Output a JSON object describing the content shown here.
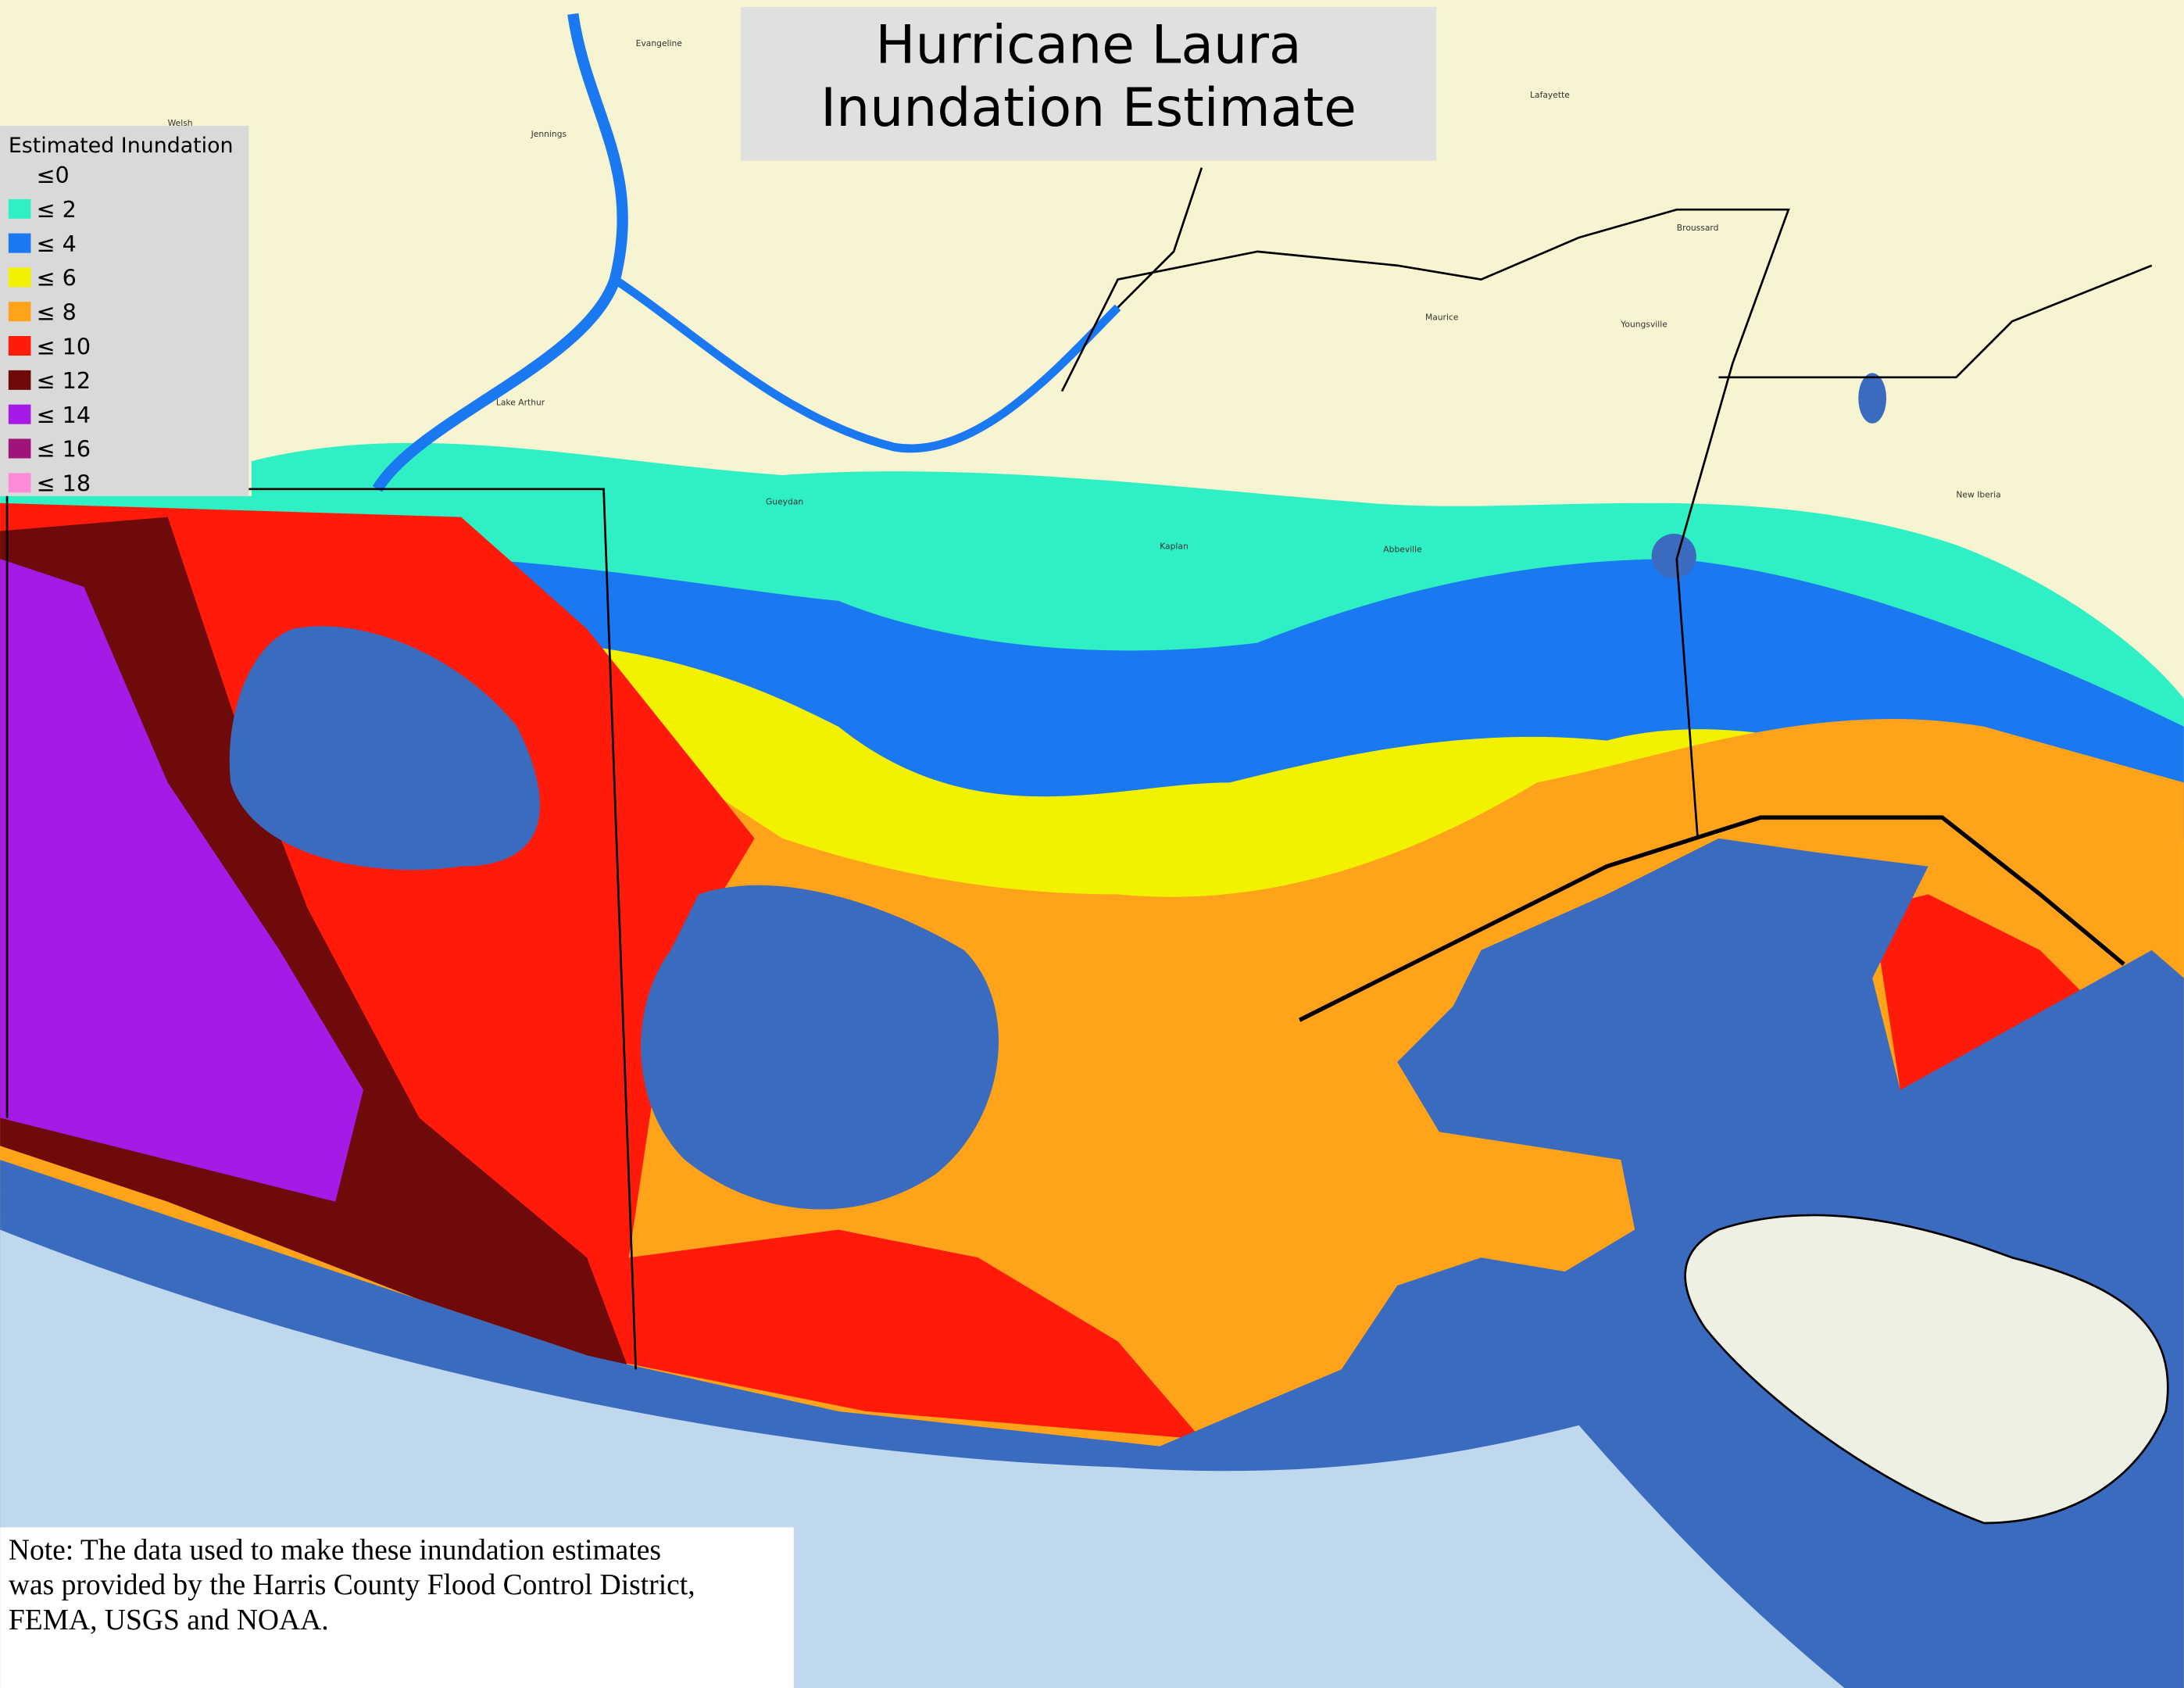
{
  "title": {
    "line1": "Hurricane Laura",
    "line2": "Inundation Estimate"
  },
  "legend": {
    "title": "Estimated Inundation",
    "items": [
      {
        "label": "≤0",
        "color": "#d9d9d9"
      },
      {
        "label": "≤ 2",
        "color": "#2ff0c4"
      },
      {
        "label": "≤ 4",
        "color": "#1a78f0"
      },
      {
        "label": "≤ 6",
        "color": "#f2f200"
      },
      {
        "label": "≤ 8",
        "color": "#ffa31a"
      },
      {
        "label": "≤ 10",
        "color": "#ff1a0a"
      },
      {
        "label": "≤ 12",
        "color": "#6e0a0a"
      },
      {
        "label": "≤ 14",
        "color": "#a61ae6"
      },
      {
        "label": "≤ 16",
        "color": "#a0147a"
      },
      {
        "label": "≤ 18",
        "color": "#ff8ad8"
      }
    ]
  },
  "places": [
    "Lafayette",
    "New Iberia",
    "Abbeville",
    "Kaplan",
    "Jennings",
    "Welsh",
    "Evangeline",
    "Broussard",
    "Youngsville",
    "Maurice",
    "Gueydan",
    "Lake Arthur"
  ],
  "note": [
    "Note: The data used to make these inundation estimates",
    "was provided by the Harris County Flood Control District,",
    "FEMA, USGS and NOAA."
  ]
}
